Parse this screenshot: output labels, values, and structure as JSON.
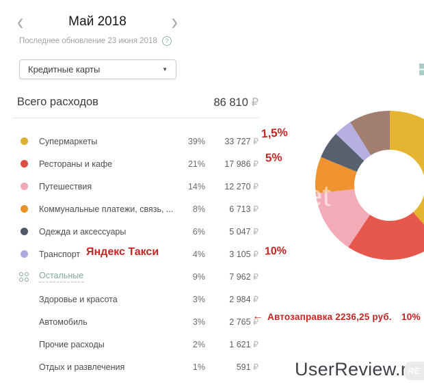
{
  "header": {
    "month_title": "Май 2018",
    "updated_text": "Последнее обновление 23 июня 2018",
    "account_filter": "Кредитные карты"
  },
  "icons": {
    "chevron_left": "‹",
    "chevron_right": "›",
    "help": "?",
    "dropdown_arrow": "▼"
  },
  "totals": {
    "label": "Всего расходов",
    "amount": "86 810"
  },
  "currency": "₽",
  "categories": [
    {
      "label": "Супермаркеты",
      "percent": "39%",
      "amount": "33 727",
      "color": "#dcb12d",
      "type": "dot"
    },
    {
      "label": "Рестораны и кафе",
      "percent": "21%",
      "amount": "17 986",
      "color": "#dd4e43",
      "type": "dot"
    },
    {
      "label": "Путешествия",
      "percent": "14%",
      "amount": "12 270",
      "color": "#efa7b4",
      "type": "dot"
    },
    {
      "label": "Коммунальные платежи, связь, ...",
      "percent": "8%",
      "amount": "6 713",
      "color": "#ea9029",
      "type": "dot"
    },
    {
      "label": "Одежда и аксессуары",
      "percent": "6%",
      "amount": "5 047",
      "color": "#4e5869",
      "type": "dot"
    },
    {
      "label": "Транспорт",
      "percent": "4%",
      "amount": "3 105",
      "color": "#aea8e0",
      "type": "dot"
    },
    {
      "label": "Остальные",
      "percent": "9%",
      "amount": "7 962",
      "color": "#84a89f",
      "type": "group"
    },
    {
      "label": "Здоровье и красота",
      "percent": "3%",
      "amount": "2 984",
      "type": "sub"
    },
    {
      "label": "Автомобиль",
      "percent": "3%",
      "amount": "2 765",
      "type": "sub"
    },
    {
      "label": "Прочие расходы",
      "percent": "2%",
      "amount": "1 621",
      "type": "sub"
    },
    {
      "label": "Отдых и развлечения",
      "percent": "1%",
      "amount": "591",
      "type": "sub"
    }
  ],
  "chart_data": {
    "type": "pie",
    "donut": true,
    "title": "Всего расходов",
    "total": "86 810 ₽",
    "categories": [
      "Супермаркеты",
      "Рестораны и кафе",
      "Путешествия",
      "Коммунальные платежи, связь, ...",
      "Одежда и аксессуары",
      "Транспорт",
      "Остальные"
    ],
    "values": [
      39,
      21,
      14,
      8,
      6,
      4,
      9
    ],
    "colors": [
      "#e5b431",
      "#e7584c",
      "#f3abb8",
      "#ef9330",
      "#57616f",
      "#b5afe2",
      "#a27e70"
    ],
    "legend_position": "left",
    "start_angle_deg": 0
  },
  "annotations": {
    "pct_supermarkets": "1,5%",
    "pct_restaurants": "5%",
    "yandex_taxi": "Яндекс Такси",
    "pct_transport": "10%",
    "arrow": "←",
    "car_note": "Автозаправка 2236,25 руб.",
    "pct_car": "10%",
    "accent_color": "#c32524"
  },
  "watermark": {
    "site": "UserReview.net",
    "badge": "RE",
    "pie_fragment": "et"
  }
}
